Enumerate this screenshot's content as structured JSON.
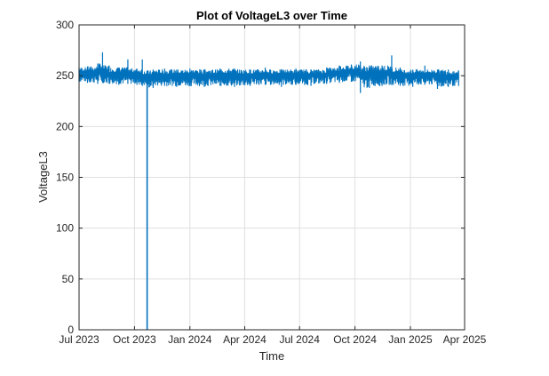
{
  "chart_data": {
    "type": "line",
    "title": "Plot of VoltageL3 over Time",
    "xlabel": "Time",
    "ylabel": "VoltageL3",
    "x_range": [
      "2023-07-01",
      "2025-04-01"
    ],
    "ylim": [
      0,
      300
    ],
    "y_ticks": [
      0,
      50,
      100,
      150,
      200,
      250,
      300
    ],
    "x_ticks": [
      {
        "date": "2023-07-01",
        "label": "Jul 2023"
      },
      {
        "date": "2023-10-01",
        "label": "Oct 2023"
      },
      {
        "date": "2024-01-01",
        "label": "Jan 2024"
      },
      {
        "date": "2024-04-01",
        "label": "Apr 2024"
      },
      {
        "date": "2024-07-01",
        "label": "Jul 2024"
      },
      {
        "date": "2024-10-01",
        "label": "Oct 2024"
      },
      {
        "date": "2025-01-01",
        "label": "Jan 2025"
      },
      {
        "date": "2025-04-01",
        "label": "Apr 2025"
      }
    ],
    "grid": true,
    "series": [
      {
        "color": "#0072BD",
        "points": [
          {
            "date": "2023-07-01",
            "min": 244,
            "max": 258
          },
          {
            "date": "2023-07-15",
            "min": 243,
            "max": 259
          },
          {
            "date": "2023-08-01",
            "min": 242,
            "max": 262
          },
          {
            "date": "2023-08-09",
            "min": 243,
            "max": 273
          },
          {
            "date": "2023-08-20",
            "min": 242,
            "max": 260
          },
          {
            "date": "2023-09-05",
            "min": 241,
            "max": 258
          },
          {
            "date": "2023-09-20",
            "min": 242,
            "max": 266
          },
          {
            "date": "2023-10-05",
            "min": 241,
            "max": 257
          },
          {
            "date": "2023-10-14",
            "min": 240,
            "max": 266
          },
          {
            "date": "2023-10-22",
            "min": 0,
            "max": 255
          },
          {
            "date": "2023-11-01",
            "min": 238,
            "max": 256
          },
          {
            "date": "2023-11-20",
            "min": 240,
            "max": 257
          },
          {
            "date": "2023-12-10",
            "min": 239,
            "max": 256
          },
          {
            "date": "2024-01-01",
            "min": 240,
            "max": 257
          },
          {
            "date": "2024-01-25",
            "min": 239,
            "max": 256
          },
          {
            "date": "2024-02-20",
            "min": 240,
            "max": 257
          },
          {
            "date": "2024-03-15",
            "min": 239,
            "max": 257
          },
          {
            "date": "2024-04-10",
            "min": 240,
            "max": 256
          },
          {
            "date": "2024-05-05",
            "min": 241,
            "max": 258
          },
          {
            "date": "2024-06-01",
            "min": 239,
            "max": 256
          },
          {
            "date": "2024-06-25",
            "min": 241,
            "max": 257
          },
          {
            "date": "2024-07-20",
            "min": 240,
            "max": 256
          },
          {
            "date": "2024-08-15",
            "min": 242,
            "max": 258
          },
          {
            "date": "2024-09-05",
            "min": 243,
            "max": 260
          },
          {
            "date": "2024-09-25",
            "min": 244,
            "max": 261
          },
          {
            "date": "2024-10-10",
            "min": 233,
            "max": 264
          },
          {
            "date": "2024-10-25",
            "min": 238,
            "max": 260
          },
          {
            "date": "2024-11-15",
            "min": 240,
            "max": 260
          },
          {
            "date": "2024-12-01",
            "min": 241,
            "max": 270
          },
          {
            "date": "2024-12-15",
            "min": 240,
            "max": 258
          },
          {
            "date": "2025-01-05",
            "min": 239,
            "max": 256
          },
          {
            "date": "2025-01-25",
            "min": 241,
            "max": 260
          },
          {
            "date": "2025-02-15",
            "min": 237,
            "max": 256
          },
          {
            "date": "2025-03-05",
            "min": 239,
            "max": 256
          },
          {
            "date": "2025-03-22",
            "min": 240,
            "max": 255
          }
        ]
      }
    ]
  }
}
